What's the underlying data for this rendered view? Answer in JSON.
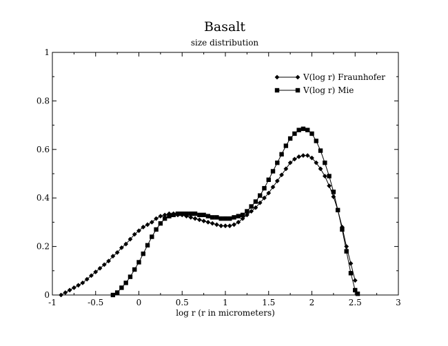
{
  "chart_data": {
    "type": "line",
    "title": "Basalt",
    "subtitle": "size distribution",
    "xlabel": "log r (r in micrometers)",
    "ylabel": "",
    "xlim": [
      -1,
      3
    ],
    "ylim": [
      0,
      1
    ],
    "x_ticks": [
      -1,
      -0.5,
      0,
      0.5,
      1,
      1.5,
      2,
      2.5,
      3
    ],
    "x_tick_labels": [
      "-1",
      "-0.5",
      "0",
      "0.5",
      "1",
      "1.5",
      "2",
      "2.5",
      "3"
    ],
    "y_ticks": [
      0,
      0.2,
      0.4,
      0.6,
      0.8,
      1
    ],
    "y_tick_labels": [
      "0",
      "0.2",
      "0.4",
      "0.6",
      "0.8",
      "1"
    ],
    "grid": false,
    "legend_position": "top-right",
    "series": [
      {
        "name": "V(log r) Fraunhofer",
        "marker": "diamond",
        "x": [
          -0.9,
          -0.85,
          -0.8,
          -0.75,
          -0.7,
          -0.65,
          -0.6,
          -0.55,
          -0.5,
          -0.45,
          -0.4,
          -0.35,
          -0.3,
          -0.25,
          -0.2,
          -0.15,
          -0.1,
          -0.05,
          0.0,
          0.05,
          0.1,
          0.15,
          0.2,
          0.25,
          0.3,
          0.35,
          0.4,
          0.45,
          0.5,
          0.55,
          0.6,
          0.65,
          0.7,
          0.75,
          0.8,
          0.85,
          0.9,
          0.95,
          1.0,
          1.05,
          1.1,
          1.15,
          1.2,
          1.25,
          1.3,
          1.35,
          1.4,
          1.45,
          1.5,
          1.55,
          1.6,
          1.65,
          1.7,
          1.75,
          1.8,
          1.85,
          1.9,
          1.95,
          2.0,
          2.05,
          2.1,
          2.15,
          2.2,
          2.25,
          2.3,
          2.35,
          2.4,
          2.45,
          2.5
        ],
        "y": [
          0.0,
          0.01,
          0.02,
          0.03,
          0.04,
          0.05,
          0.065,
          0.08,
          0.095,
          0.11,
          0.125,
          0.14,
          0.16,
          0.175,
          0.195,
          0.21,
          0.23,
          0.25,
          0.265,
          0.28,
          0.29,
          0.3,
          0.315,
          0.325,
          0.33,
          0.335,
          0.335,
          0.33,
          0.33,
          0.325,
          0.32,
          0.315,
          0.31,
          0.305,
          0.3,
          0.295,
          0.29,
          0.285,
          0.285,
          0.285,
          0.29,
          0.3,
          0.315,
          0.33,
          0.345,
          0.36,
          0.38,
          0.4,
          0.42,
          0.445,
          0.47,
          0.495,
          0.52,
          0.545,
          0.56,
          0.57,
          0.575,
          0.575,
          0.565,
          0.545,
          0.52,
          0.49,
          0.45,
          0.405,
          0.35,
          0.28,
          0.2,
          0.13,
          0.06
        ]
      },
      {
        "name": "V(log r) Mie",
        "marker": "square",
        "x": [
          -0.3,
          -0.25,
          -0.2,
          -0.15,
          -0.1,
          -0.05,
          0.0,
          0.05,
          0.1,
          0.15,
          0.2,
          0.25,
          0.3,
          0.35,
          0.4,
          0.45,
          0.5,
          0.55,
          0.6,
          0.65,
          0.7,
          0.75,
          0.8,
          0.85,
          0.9,
          0.95,
          1.0,
          1.05,
          1.1,
          1.15,
          1.2,
          1.25,
          1.3,
          1.35,
          1.4,
          1.45,
          1.5,
          1.55,
          1.6,
          1.65,
          1.7,
          1.75,
          1.8,
          1.85,
          1.9,
          1.95,
          2.0,
          2.05,
          2.1,
          2.15,
          2.2,
          2.25,
          2.3,
          2.35,
          2.4,
          2.45,
          2.5,
          2.53
        ],
        "y": [
          0.0,
          0.01,
          0.03,
          0.05,
          0.075,
          0.105,
          0.135,
          0.17,
          0.205,
          0.24,
          0.27,
          0.295,
          0.315,
          0.325,
          0.33,
          0.335,
          0.335,
          0.335,
          0.335,
          0.335,
          0.33,
          0.33,
          0.325,
          0.32,
          0.32,
          0.315,
          0.315,
          0.315,
          0.32,
          0.325,
          0.33,
          0.345,
          0.365,
          0.385,
          0.41,
          0.44,
          0.475,
          0.51,
          0.545,
          0.58,
          0.615,
          0.645,
          0.665,
          0.68,
          0.685,
          0.68,
          0.665,
          0.635,
          0.595,
          0.545,
          0.49,
          0.425,
          0.35,
          0.27,
          0.18,
          0.09,
          0.02,
          0.005
        ]
      }
    ]
  }
}
